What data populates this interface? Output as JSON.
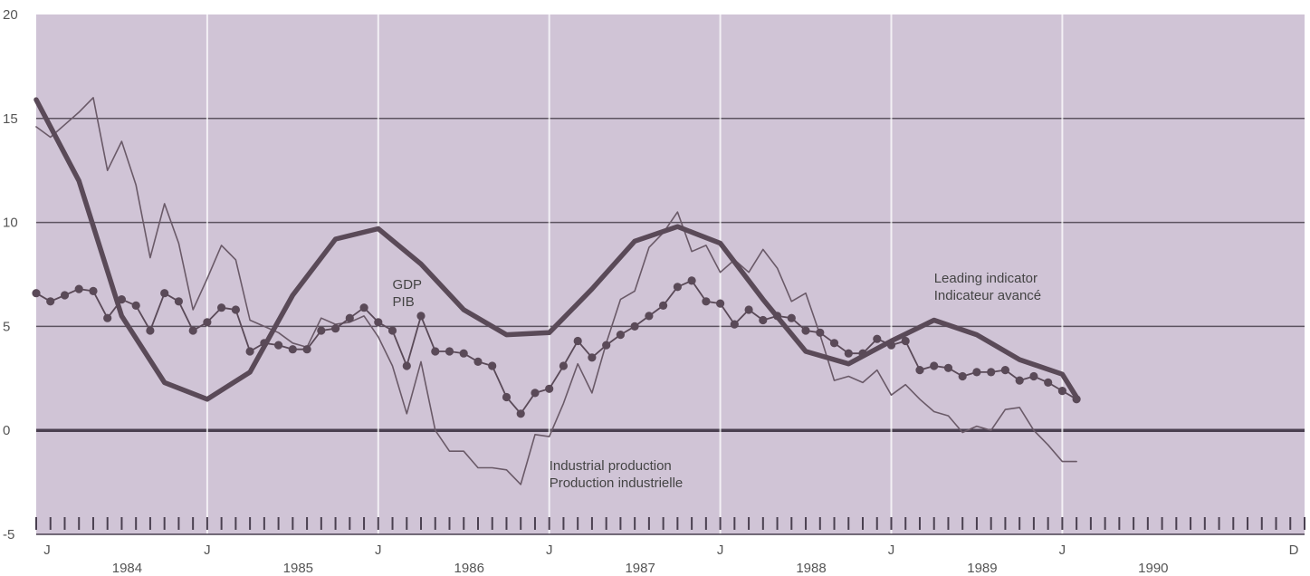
{
  "chart_data": {
    "type": "line",
    "title": "",
    "xlabel": "",
    "ylabel": "",
    "ylim": [
      -5,
      20
    ],
    "yticks": [
      -5,
      0,
      5,
      10,
      15,
      20
    ],
    "ytick_labels": [
      "-5",
      "0",
      "5",
      "10",
      "15",
      "20"
    ],
    "xlim": [
      "1983-07",
      "1990-12"
    ],
    "x_tick_labels": [
      "J",
      "J",
      "J",
      "J",
      "J",
      "J",
      "J",
      "D"
    ],
    "x_tick_dates": [
      "1983-07",
      "1984-07",
      "1985-07",
      "1986-07",
      "1987-07",
      "1988-07",
      "1989-07",
      "1990-12"
    ],
    "year_labels": [
      "1984",
      "1985",
      "1986",
      "1987",
      "1988",
      "1989",
      "1990"
    ],
    "year_label_dates": [
      "1984-01",
      "1985-01",
      "1986-01",
      "1987-01",
      "1988-01",
      "1989-01",
      "1990-01"
    ],
    "grid": "horizontal at 5, 10, 15; vertical at each July",
    "minor_ticks": "monthly along bottom",
    "series": [
      {
        "name": "Leading indicator / Indicateur avancé",
        "style": "thick-line",
        "color": "#5a4a58",
        "x": [
          "1983-07",
          "1983-10",
          "1984-01",
          "1984-04",
          "1984-07",
          "1984-10",
          "1985-01",
          "1985-04",
          "1985-07",
          "1985-10",
          "1986-01",
          "1986-04",
          "1986-07",
          "1986-10",
          "1987-01",
          "1987-04",
          "1987-07",
          "1987-10",
          "1988-01",
          "1988-04",
          "1988-07",
          "1988-10",
          "1989-01",
          "1989-04",
          "1989-07",
          "1989-08"
        ],
        "y": [
          15.9,
          12,
          5.5,
          2.3,
          1.5,
          2.8,
          6.5,
          9.2,
          9.7,
          8.0,
          5.8,
          4.6,
          4.7,
          6.8,
          9.1,
          9.8,
          9.0,
          6.3,
          3.8,
          3.2,
          4.3,
          5.3,
          4.6,
          3.4,
          2.7,
          1.6
        ]
      },
      {
        "name": "GDP / PIB",
        "style": "line-with-markers",
        "color": "#5a4a58",
        "x": [
          "1983-07",
          "1983-08",
          "1983-09",
          "1983-10",
          "1983-11",
          "1983-12",
          "1984-01",
          "1984-02",
          "1984-03",
          "1984-04",
          "1984-05",
          "1984-06",
          "1984-07",
          "1984-08",
          "1984-09",
          "1984-10",
          "1984-11",
          "1984-12",
          "1985-01",
          "1985-02",
          "1985-03",
          "1985-04",
          "1985-05",
          "1985-06",
          "1985-07",
          "1985-08",
          "1985-09",
          "1985-10",
          "1985-11",
          "1985-12",
          "1986-01",
          "1986-02",
          "1986-03",
          "1986-04",
          "1986-05",
          "1986-06",
          "1986-07",
          "1986-08",
          "1986-09",
          "1986-10",
          "1986-11",
          "1986-12",
          "1987-01",
          "1987-02",
          "1987-03",
          "1987-04",
          "1987-05",
          "1987-06",
          "1987-07",
          "1987-08",
          "1987-09",
          "1987-10",
          "1987-11",
          "1987-12",
          "1988-01",
          "1988-02",
          "1988-03",
          "1988-04",
          "1988-05",
          "1988-06",
          "1988-07",
          "1988-08",
          "1988-09",
          "1988-10",
          "1988-11",
          "1988-12",
          "1989-01",
          "1989-02",
          "1989-03",
          "1989-04",
          "1989-05",
          "1989-06",
          "1989-07",
          "1989-08"
        ],
        "y": [
          6.6,
          6.2,
          6.5,
          6.8,
          6.7,
          5.4,
          6.3,
          6.0,
          4.8,
          6.6,
          6.2,
          4.8,
          5.2,
          5.9,
          5.8,
          3.8,
          4.2,
          4.1,
          3.9,
          3.9,
          4.8,
          4.9,
          5.4,
          5.9,
          5.2,
          4.8,
          3.1,
          5.5,
          3.8,
          3.8,
          3.7,
          3.3,
          3.1,
          1.6,
          0.8,
          1.8,
          2.0,
          3.1,
          4.3,
          3.5,
          4.1,
          4.6,
          5.0,
          5.5,
          6.0,
          6.9,
          7.2,
          6.2,
          6.1,
          5.1,
          5.8,
          5.3,
          5.5,
          5.4,
          4.8,
          4.7,
          4.2,
          3.7,
          3.7,
          4.4,
          4.1,
          4.3,
          2.9,
          3.1,
          3.0,
          2.6,
          2.8,
          2.8,
          2.9,
          2.4,
          2.6,
          2.3,
          1.9,
          1.5
        ]
      },
      {
        "name": "Industrial production / Production industrielle",
        "style": "thin-line",
        "color": "#6a5a68",
        "x": [
          "1983-07",
          "1983-08",
          "1983-09",
          "1983-10",
          "1983-11",
          "1983-12",
          "1984-01",
          "1984-02",
          "1984-03",
          "1984-04",
          "1984-05",
          "1984-06",
          "1984-07",
          "1984-08",
          "1984-09",
          "1984-10",
          "1984-11",
          "1984-12",
          "1985-01",
          "1985-02",
          "1985-03",
          "1985-04",
          "1985-05",
          "1985-06",
          "1985-07",
          "1985-08",
          "1985-09",
          "1985-10",
          "1985-11",
          "1985-12",
          "1986-01",
          "1986-02",
          "1986-03",
          "1986-04",
          "1986-05",
          "1986-06",
          "1986-07",
          "1986-08",
          "1986-09",
          "1986-10",
          "1986-11",
          "1986-12",
          "1987-01",
          "1987-02",
          "1987-03",
          "1987-04",
          "1987-05",
          "1987-06",
          "1987-07",
          "1987-08",
          "1987-09",
          "1987-10",
          "1987-11",
          "1987-12",
          "1988-01",
          "1988-02",
          "1988-03",
          "1988-04",
          "1988-05",
          "1988-06",
          "1988-07",
          "1988-08",
          "1988-09",
          "1988-10",
          "1988-11",
          "1988-12",
          "1989-01",
          "1989-02",
          "1989-03",
          "1989-04",
          "1989-05",
          "1989-06",
          "1989-07",
          "1989-08"
        ],
        "y": [
          14.6,
          14.1,
          14.7,
          15.3,
          16.0,
          12.5,
          13.9,
          11.8,
          8.3,
          10.9,
          9.0,
          5.8,
          7.3,
          8.9,
          8.2,
          5.3,
          5.0,
          4.7,
          4.2,
          4.0,
          5.4,
          5.1,
          5.2,
          5.5,
          4.5,
          3.1,
          0.8,
          3.3,
          0.0,
          -1.0,
          -1.0,
          -1.8,
          -1.8,
          -1.9,
          -2.6,
          -0.2,
          -0.3,
          1.3,
          3.2,
          1.8,
          4.2,
          6.3,
          6.7,
          8.8,
          9.5,
          10.5,
          8.6,
          8.9,
          7.6,
          8.2,
          7.6,
          8.7,
          7.8,
          6.2,
          6.6,
          4.6,
          2.4,
          2.6,
          2.3,
          2.9,
          1.7,
          2.2,
          1.5,
          0.9,
          0.7,
          -0.1,
          0.2,
          0.0,
          1.0,
          1.1,
          0.0,
          -0.7,
          -1.5,
          -1.5
        ]
      }
    ],
    "annotations": [
      {
        "lines": [
          "GDP",
          "PIB"
        ],
        "x": "1985-08",
        "y": 6.8
      },
      {
        "lines": [
          "Leading indicator",
          "Indicateur avancé"
        ],
        "x": "1988-10",
        "y": 7.1
      },
      {
        "lines": [
          "Industrial production",
          "Production industrielle"
        ],
        "x": "1986-07",
        "y": -1.9
      }
    ],
    "colors": {
      "plot_background": "#d0c4d6",
      "gridline": "#5c5360",
      "zero_line": "#4a4050"
    }
  }
}
